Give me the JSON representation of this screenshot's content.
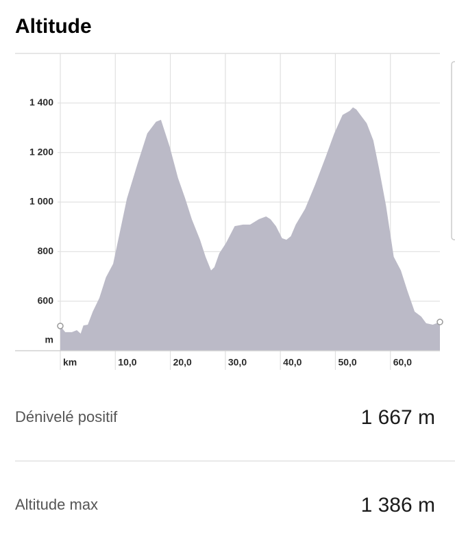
{
  "header": {
    "title": "Altitude"
  },
  "chart_data": {
    "type": "area",
    "x_unit": "km",
    "y_unit": "m",
    "x": [
      0,
      0.9,
      2.1,
      3,
      3.7,
      4.2,
      5,
      5.9,
      7.1,
      8.3,
      9.6,
      10.8,
      12.1,
      14,
      15.8,
      17.4,
      18.3,
      19.9,
      21.4,
      22.7,
      23.9,
      25.4,
      26.4,
      27.4,
      28,
      28.9,
      30.1,
      31.7,
      33.2,
      34.5,
      36.1,
      37.4,
      38.2,
      39.2,
      40.3,
      41.1,
      41.9,
      42.8,
      44.5,
      46.3,
      48.2,
      49.8,
      51.3,
      52.6,
      53.2,
      53.8,
      55.7,
      56.9,
      57.9,
      59.2,
      60.6,
      61.9,
      63.1,
      64.4,
      65.6,
      66.5,
      67.7,
      69
    ],
    "values": [
      500,
      475,
      475,
      483,
      469,
      502,
      505,
      558,
      613,
      696,
      751,
      876,
      1014,
      1152,
      1277,
      1324,
      1332,
      1222,
      1097,
      1014,
      931,
      848,
      779,
      724,
      737,
      793,
      834,
      903,
      909,
      909,
      931,
      942,
      931,
      903,
      854,
      848,
      862,
      909,
      973,
      1069,
      1180,
      1277,
      1352,
      1368,
      1382,
      1374,
      1318,
      1249,
      1139,
      986,
      779,
      724,
      641,
      558,
      538,
      511,
      505,
      516
    ],
    "color": "#bbbac7",
    "xlim": [
      0,
      69
    ],
    "ylim": [
      400,
      1600
    ],
    "xticks": [
      {
        "value": 0,
        "label": "km"
      },
      {
        "value": 10,
        "label": "10,0"
      },
      {
        "value": 20,
        "label": "20,0"
      },
      {
        "value": 30,
        "label": "30,0"
      },
      {
        "value": 40,
        "label": "40,0"
      },
      {
        "value": 50,
        "label": "50,0"
      },
      {
        "value": 60,
        "label": "60,0"
      }
    ],
    "yticks": [
      600,
      800,
      {
        "value": 1000,
        "label": "1 000"
      },
      {
        "value": 1200,
        "label": "1 200"
      },
      {
        "value": 1400,
        "label": "1 400"
      }
    ],
    "grid": true
  },
  "stats": [
    {
      "label": "Dénivelé positif",
      "value": "1 667 m"
    },
    {
      "label": "Altitude max",
      "value": "1 386 m"
    }
  ]
}
